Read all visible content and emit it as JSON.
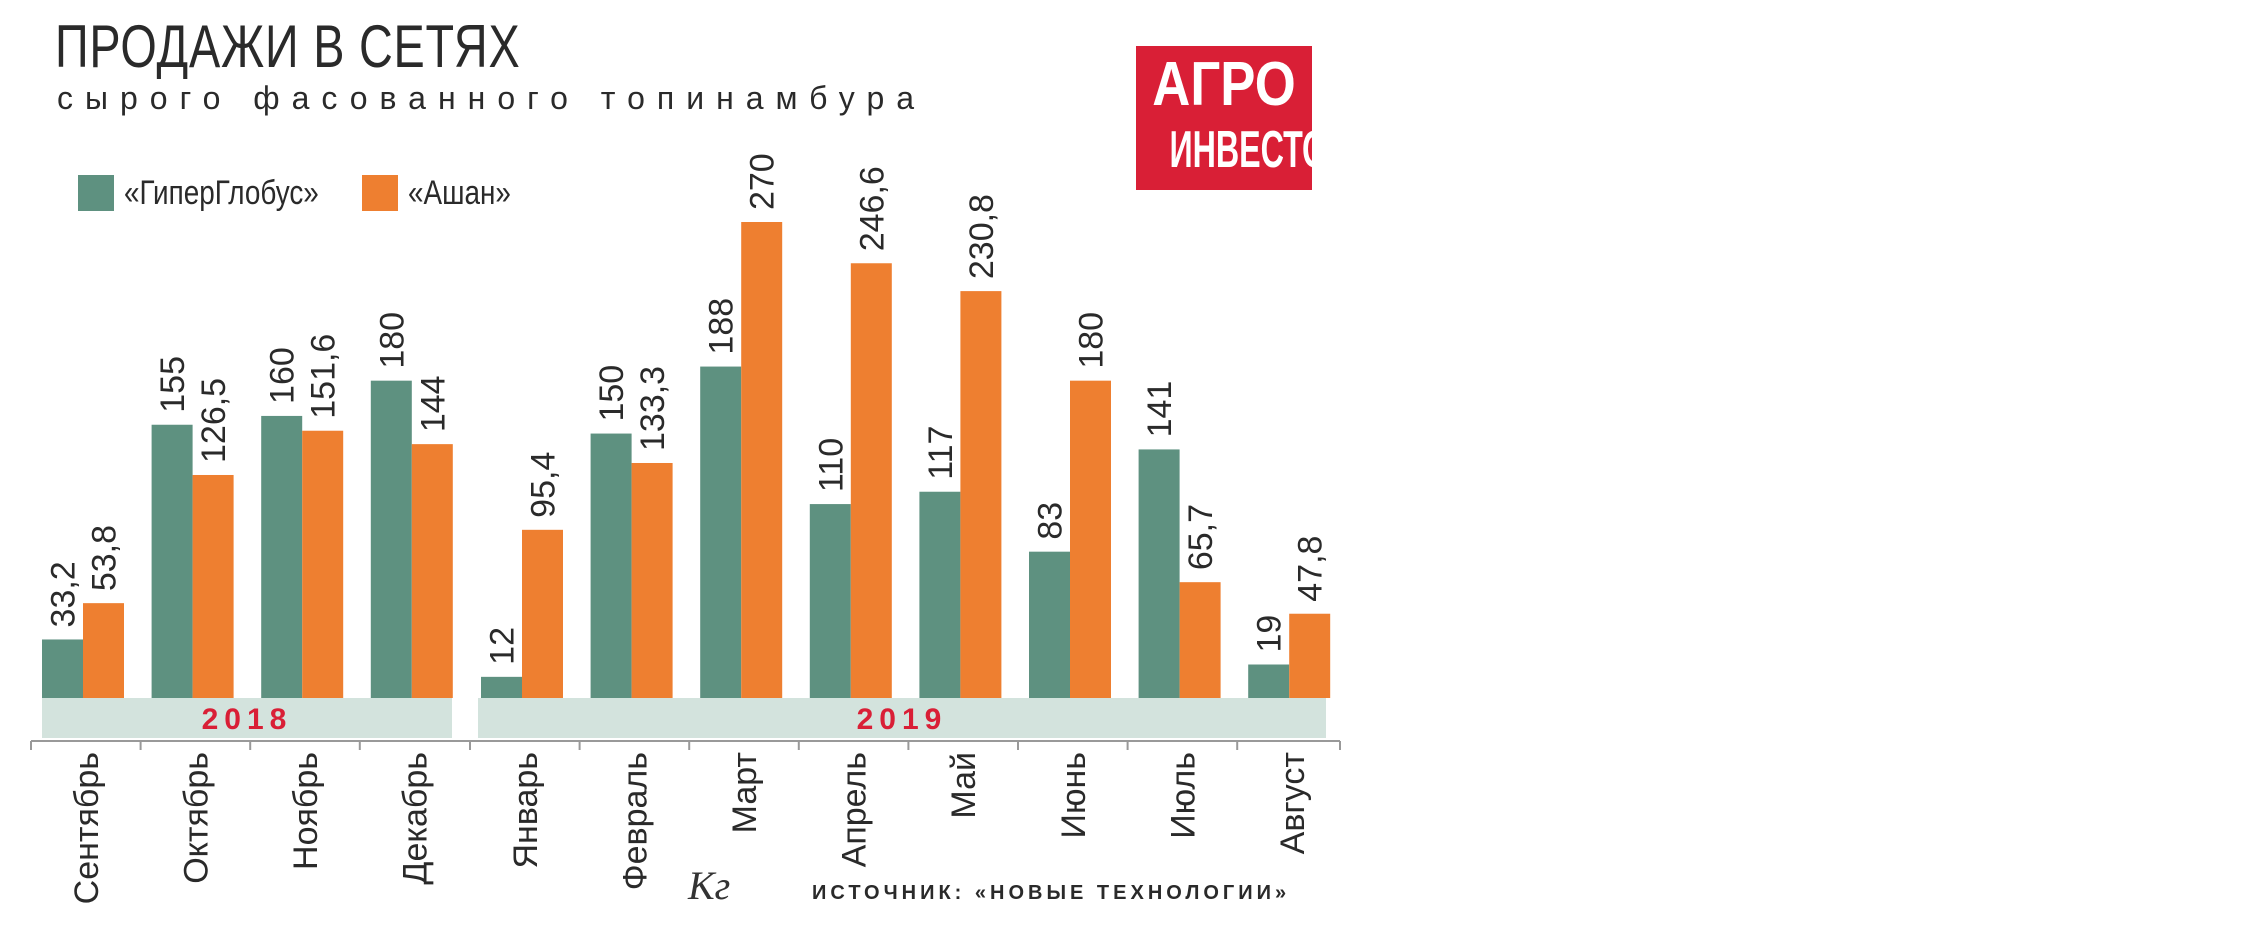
{
  "chart_data": {
    "type": "bar",
    "title": "ПРОДАЖИ В СЕТЯХ",
    "subtitle": "сырого фасованного топинамбура",
    "unit": "Кг",
    "source": "ИСТОЧНИК: «НОВЫЕ ТЕХНОЛОГИИ»",
    "categories": [
      "Сентябрь",
      "Октябрь",
      "Ноябрь",
      "Декабрь",
      "Январь",
      "Февраль",
      "Март",
      "Апрель",
      "Май",
      "Июнь",
      "Июль",
      "Август"
    ],
    "year_groups": [
      {
        "label": "2018",
        "categories": [
          "Сентябрь",
          "Октябрь",
          "Ноябрь",
          "Декабрь"
        ]
      },
      {
        "label": "2019",
        "categories": [
          "Январь",
          "Февраль",
          "Март",
          "Апрель",
          "Май",
          "Июнь",
          "Июль",
          "Август"
        ]
      }
    ],
    "series": [
      {
        "name": "«ГиперГлобус»",
        "color": "#5e9180",
        "values": [
          33.2,
          155,
          160,
          180,
          12,
          150,
          188,
          110,
          117,
          83,
          141,
          19
        ],
        "labels": [
          "33,2",
          "155",
          "160",
          "180",
          "12",
          "150",
          "188",
          "110",
          "117",
          "83",
          "141",
          "19"
        ]
      },
      {
        "name": "«Ашан»",
        "color": "#ee7f30",
        "values": [
          53.8,
          126.5,
          151.6,
          144,
          95.4,
          133.3,
          270,
          246.6,
          230.8,
          180,
          65.7,
          47.8
        ],
        "labels": [
          "53,8",
          "126,5",
          "151,6",
          "144",
          "95,4",
          "133,3",
          "270",
          "246,6",
          "230,8",
          "180",
          "65,7",
          "47,8"
        ]
      }
    ],
    "ylim": [
      0,
      270
    ],
    "grid": false,
    "legend_position": "top-left"
  },
  "logo": {
    "line1": "АГРО",
    "line2": "ИНВЕСТОР",
    "color": "#d91f36"
  },
  "colors": {
    "year_band": "#d3e3dd",
    "year_text": "#d91f36",
    "text": "#2a2a2a"
  }
}
